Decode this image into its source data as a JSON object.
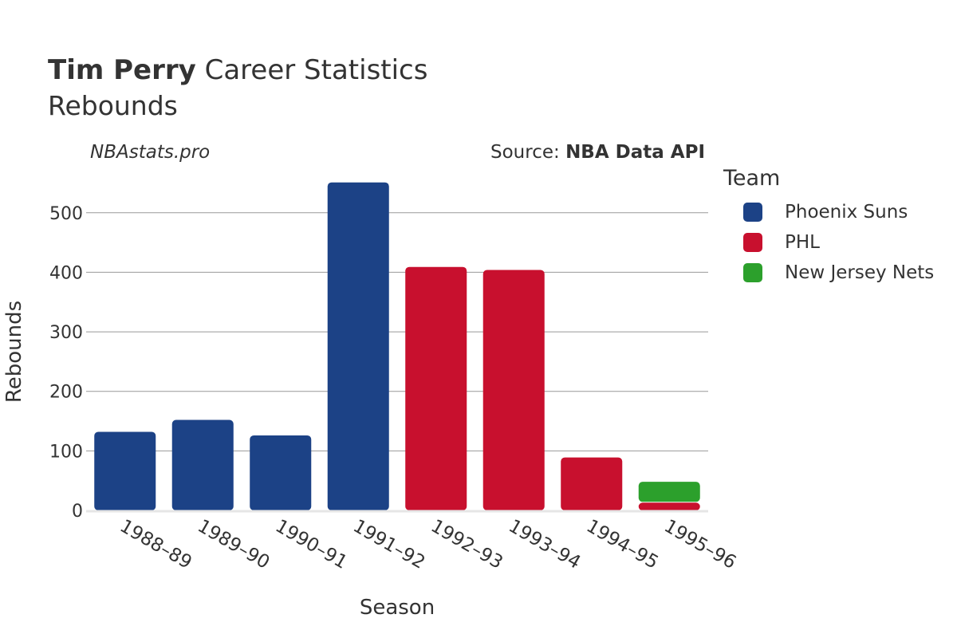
{
  "header": {
    "player_name": "Tim Perry",
    "title_rest": "Career Statistics",
    "subtitle": "Rebounds",
    "brand": "NBAstats.pro",
    "source_prefix": "Source:",
    "source_name": "NBA Data API"
  },
  "legend": {
    "title": "Team",
    "items": [
      {
        "label": "Phoenix Suns",
        "color": "#1c4286"
      },
      {
        "label": "PHL",
        "color": "#c8102e"
      },
      {
        "label": "New Jersey Nets",
        "color": "#2ca02c"
      }
    ]
  },
  "chart_data": {
    "type": "bar",
    "stacked": true,
    "title": "Tim Perry Career Statistics",
    "subtitle": "Rebounds",
    "xlabel": "Season",
    "ylabel": "Rebounds",
    "ylim": [
      0,
      560
    ],
    "yticks": [
      0,
      100,
      200,
      300,
      400,
      500
    ],
    "categories": [
      "1988–89",
      "1989–90",
      "1990–91",
      "1991–92",
      "1992–93",
      "1993–94",
      "1994–95",
      "1995–96"
    ],
    "series": [
      {
        "name": "Phoenix Suns",
        "color": "#1c4286",
        "values": [
          132,
          152,
          126,
          551,
          0,
          0,
          0,
          0
        ]
      },
      {
        "name": "PHL",
        "color": "#c8102e",
        "values": [
          0,
          0,
          0,
          0,
          409,
          404,
          89,
          13
        ]
      },
      {
        "name": "New Jersey Nets",
        "color": "#2ca02c",
        "values": [
          0,
          0,
          0,
          0,
          0,
          0,
          0,
          35
        ]
      }
    ]
  }
}
